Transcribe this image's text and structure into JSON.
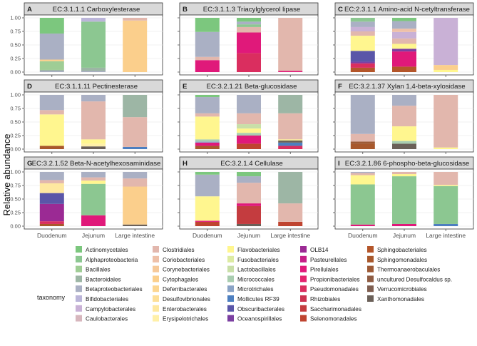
{
  "figure": {
    "y_axis_label": "Relative abundance"
  },
  "chart_data": {
    "type": "stacked-bar-facets",
    "ylabel": "Relative abundance",
    "categories": [
      "Duodenum",
      "Jejunum",
      "Large intestine"
    ],
    "ylim": [
      0,
      1
    ],
    "yticks": [
      "0.00",
      "0.25",
      "0.50",
      "0.75",
      "1.00"
    ],
    "legend": {
      "title": "taxonomy",
      "position": "bottom",
      "entries": [
        {
          "name": "Actinomycetales",
          "color": "#7cc77e"
        },
        {
          "name": "Alphaproteobacteria",
          "color": "#8cc791"
        },
        {
          "name": "Bacillales",
          "color": "#9fcd95"
        },
        {
          "name": "Bacteroidales",
          "color": "#9db6a5"
        },
        {
          "name": "Betaproteobacteriales",
          "color": "#aab0c4"
        },
        {
          "name": "Bifidobacteriales",
          "color": "#bbb5d9"
        },
        {
          "name": "Campylobacterales",
          "color": "#c9b1d6"
        },
        {
          "name": "Caulobacterales",
          "color": "#d7b6bd"
        },
        {
          "name": "Clostridiales",
          "color": "#e2b7ad"
        },
        {
          "name": "Coriobacteriales",
          "color": "#eec0a8"
        },
        {
          "name": "Corynebacteriales",
          "color": "#f6c999"
        },
        {
          "name": "Cytophagales",
          "color": "#fbcf8c"
        },
        {
          "name": "Deferribacterales",
          "color": "#fcd691"
        },
        {
          "name": "Desulfovibrionales",
          "color": "#fddf98"
        },
        {
          "name": "Enterobacterales",
          "color": "#fee8a0"
        },
        {
          "name": "Erysipelotrichales",
          "color": "#fff0a8"
        },
        {
          "name": "Flavobacteriales",
          "color": "#fff68f"
        },
        {
          "name": "Fusobacteriales",
          "color": "#ddeba2"
        },
        {
          "name": "Lactobacillales",
          "color": "#c9dfa8"
        },
        {
          "name": "Micrococcales",
          "color": "#a9cdb0"
        },
        {
          "name": "Microtrichales",
          "color": "#8aa3c6"
        },
        {
          "name": "Mollicutes RF39",
          "color": "#4d7fc0"
        },
        {
          "name": "Obscuribacterales",
          "color": "#5a56a8"
        },
        {
          "name": "Oceanospirillales",
          "color": "#7b3fa1"
        },
        {
          "name": "OLB14",
          "color": "#9b2a94"
        },
        {
          "name": "Pasteurellales",
          "color": "#c61f87"
        },
        {
          "name": "Pirellulales",
          "color": "#e0197a"
        },
        {
          "name": "Propionibacteriales",
          "color": "#e4246f"
        },
        {
          "name": "Pseudomonadales",
          "color": "#da2e5f"
        },
        {
          "name": "Rhizobiales",
          "color": "#cc3350"
        },
        {
          "name": "Saccharimonadales",
          "color": "#c43c3f"
        },
        {
          "name": "Selenomonadales",
          "color": "#bf4430"
        },
        {
          "name": "Sphingobacteriales",
          "color": "#b4562a"
        },
        {
          "name": "Sphingomonadales",
          "color": "#a8582c"
        },
        {
          "name": "Thermoanaerobaculales",
          "color": "#9d5a36"
        },
        {
          "name": "uncultured Desulfocaldus sp.",
          "color": "#8f5c43"
        },
        {
          "name": "Verrucomicrobiales",
          "color": "#7f5e50"
        },
        {
          "name": "Xanthomonadales",
          "color": "#6b6058"
        }
      ]
    },
    "panels": [
      {
        "label": "A",
        "title": "EC:3.1.1.1 Carboxylesterase",
        "bars": [
          [
            {
              "taxon": "Betaproteobacteriales",
              "value": 0.02
            },
            {
              "taxon": "Bacteroidales",
              "value": 0.02
            },
            {
              "taxon": "Bacillales",
              "value": 0.16
            },
            {
              "taxon": "Cytophagales",
              "value": 0.03
            },
            {
              "taxon": "Betaproteobacteriales",
              "value": 0.48
            },
            {
              "taxon": "Actinomycetales",
              "value": 0.29
            }
          ],
          [
            {
              "taxon": "Betaproteobacteriales",
              "value": 0.02
            },
            {
              "taxon": "Bacteroidales",
              "value": 0.06
            },
            {
              "taxon": "Alphaproteobacteria",
              "value": 0.85
            },
            {
              "taxon": "Bifidobacteriales",
              "value": 0.07
            }
          ],
          [
            {
              "taxon": "Cytophagales",
              "value": 0.95
            },
            {
              "taxon": "Clostridiales",
              "value": 0.05
            }
          ]
        ]
      },
      {
        "label": "B",
        "title": "EC:3.1.1.3 Triacylglycerol lipase",
        "bars": [
          [
            {
              "taxon": "Pirellulales",
              "value": 0.22
            },
            {
              "taxon": "Clostridiales",
              "value": 0.06
            },
            {
              "taxon": "Betaproteobacteriales",
              "value": 0.46
            },
            {
              "taxon": "Actinomycetales",
              "value": 0.26
            }
          ],
          [
            {
              "taxon": "Pseudomonadales",
              "value": 0.35
            },
            {
              "taxon": "Pirellulales",
              "value": 0.38
            },
            {
              "taxon": "Clostridiales",
              "value": 0.1
            },
            {
              "taxon": "Alphaproteobacteria",
              "value": 0.05
            },
            {
              "taxon": "Betaproteobacteriales",
              "value": 0.05
            },
            {
              "taxon": "Actinomycetales",
              "value": 0.07
            }
          ],
          [
            {
              "taxon": "Pirellulales",
              "value": 0.02
            },
            {
              "taxon": "Clostridiales",
              "value": 0.98
            }
          ]
        ]
      },
      {
        "label": "C",
        "title": "EC:2.3.1.1 Amino-acid N-cetyltransferase",
        "bars": [
          [
            {
              "taxon": "Sphingobacteriales",
              "value": 0.08
            },
            {
              "taxon": "Pseudomonadales",
              "value": 0.08
            },
            {
              "taxon": "Oceanospirillales",
              "value": 0.03
            },
            {
              "taxon": "Obscuribacterales",
              "value": 0.2
            },
            {
              "taxon": "Flavobacteriales",
              "value": 0.28
            },
            {
              "taxon": "Clostridiales",
              "value": 0.08
            },
            {
              "taxon": "Campylobacterales",
              "value": 0.08
            },
            {
              "taxon": "Betaproteobacteriales",
              "value": 0.1
            },
            {
              "taxon": "Alphaproteobacteria",
              "value": 0.07
            }
          ],
          [
            {
              "taxon": "Sphingobacteriales",
              "value": 0.1
            },
            {
              "taxon": "Pirellulales",
              "value": 0.28
            },
            {
              "taxon": "Oceanospirillales",
              "value": 0.05
            },
            {
              "taxon": "Flavobacteriales",
              "value": 0.09
            },
            {
              "taxon": "Clostridiales",
              "value": 0.1
            },
            {
              "taxon": "Campylobacterales",
              "value": 0.12
            },
            {
              "taxon": "Coriobacteriales",
              "value": 0.06
            },
            {
              "taxon": "Betaproteobacteriales",
              "value": 0.14
            },
            {
              "taxon": "Actinomycetales",
              "value": 0.06
            }
          ],
          [
            {
              "taxon": "Flavobacteriales",
              "value": 0.04
            },
            {
              "taxon": "Cytophagales",
              "value": 0.09
            },
            {
              "taxon": "Campylobacterales",
              "value": 0.87
            }
          ]
        ]
      },
      {
        "label": "D",
        "title": "EC:3.1.1.11 Pectinesterase",
        "bars": [
          [
            {
              "taxon": "Sphingomonadales",
              "value": 0.06
            },
            {
              "taxon": "Flavobacteriales",
              "value": 0.58
            },
            {
              "taxon": "Clostridiales",
              "value": 0.08
            },
            {
              "taxon": "Betaproteobacteriales",
              "value": 0.28
            }
          ],
          [
            {
              "taxon": "Xanthomonadales",
              "value": 0.05
            },
            {
              "taxon": "Erysipelotrichales",
              "value": 0.05
            },
            {
              "taxon": "Flavobacteriales",
              "value": 0.08
            },
            {
              "taxon": "Clostridiales",
              "value": 0.7
            },
            {
              "taxon": "Betaproteobacteriales",
              "value": 0.12
            }
          ],
          [
            {
              "taxon": "Mollicutes RF39",
              "value": 0.04
            },
            {
              "taxon": "Clostridiales",
              "value": 0.55
            },
            {
              "taxon": "Bacteroidales",
              "value": 0.41
            }
          ]
        ]
      },
      {
        "label": "E",
        "title": "EC:3.2.1.21 Beta-glucosidase",
        "bars": [
          [
            {
              "taxon": "Sphingomonadales",
              "value": 0.06
            },
            {
              "taxon": "Pirellulales",
              "value": 0.06
            },
            {
              "taxon": "Microtrichales",
              "value": 0.02
            },
            {
              "taxon": "Micrococcales",
              "value": 0.04
            },
            {
              "taxon": "Flavobacteriales",
              "value": 0.42
            },
            {
              "taxon": "Clostridiales",
              "value": 0.06
            },
            {
              "taxon": "Betaproteobacteriales",
              "value": 0.3
            },
            {
              "taxon": "Actinomycetales",
              "value": 0.04
            }
          ],
          [
            {
              "taxon": "Selenomonadales",
              "value": 0.1
            },
            {
              "taxon": "Pirellulales",
              "value": 0.15
            },
            {
              "taxon": "Micrococcales",
              "value": 0.05
            },
            {
              "taxon": "Flavobacteriales",
              "value": 0.08
            },
            {
              "taxon": "Lactobacillales",
              "value": 0.08
            },
            {
              "taxon": "Clostridiales",
              "value": 0.2
            },
            {
              "taxon": "Betaproteobacteriales",
              "value": 0.34
            }
          ],
          [
            {
              "taxon": "Pseudomonadales",
              "value": 0.06
            },
            {
              "taxon": "Mollicutes RF39",
              "value": 0.06
            },
            {
              "taxon": "Xanthomonadales",
              "value": 0.04
            },
            {
              "taxon": "Flavobacteriales",
              "value": 0.02
            },
            {
              "taxon": "Clostridiales",
              "value": 0.48
            },
            {
              "taxon": "Bacteroidales",
              "value": 0.34
            }
          ]
        ]
      },
      {
        "label": "F",
        "title": "EC:3.2.1.37 Xylan 1,4-beta-xylosidase",
        "bars": [
          [
            {
              "taxon": "Sphingomonadales",
              "value": 0.1
            },
            {
              "taxon": "Thermoanaerobaculales",
              "value": 0.04
            },
            {
              "taxon": "Clostridiales",
              "value": 0.14
            },
            {
              "taxon": "Betaproteobacteriales",
              "value": 0.72
            }
          ],
          [
            {
              "taxon": "Xanthomonadales",
              "value": 0.1
            },
            {
              "taxon": "Micrococcales",
              "value": 0.05
            },
            {
              "taxon": "Flavobacteriales",
              "value": 0.27
            },
            {
              "taxon": "Clostridiales",
              "value": 0.38
            },
            {
              "taxon": "Betaproteobacteriales",
              "value": 0.2
            }
          ],
          [
            {
              "taxon": "Flavobacteriales",
              "value": 0.03
            },
            {
              "taxon": "Clostridiales",
              "value": 0.97
            }
          ]
        ]
      },
      {
        "label": "G",
        "title": "EC:3.2.1.52 Beta-N-acetylhexosaminidase",
        "bars": [
          [
            {
              "taxon": "Sphingomonadales",
              "value": 0.04
            },
            {
              "taxon": "Pseudomonadales",
              "value": 0.05
            },
            {
              "taxon": "OLB14",
              "value": 0.32
            },
            {
              "taxon": "Obscuribacterales",
              "value": 0.2
            },
            {
              "taxon": "Enterobacterales",
              "value": 0.18
            },
            {
              "taxon": "Clostridiales",
              "value": 0.06
            },
            {
              "taxon": "Betaproteobacteriales",
              "value": 0.15
            }
          ],
          [
            {
              "taxon": "Pirellulales",
              "value": 0.2
            },
            {
              "taxon": "Alphaproteobacteria",
              "value": 0.58
            },
            {
              "taxon": "Flavobacteriales",
              "value": 0.06
            },
            {
              "taxon": "Clostridiales",
              "value": 0.06
            },
            {
              "taxon": "Betaproteobacteriales",
              "value": 0.1
            }
          ],
          [
            {
              "taxon": "Xanthomonadales",
              "value": 0.03
            },
            {
              "taxon": "Cytophagales",
              "value": 0.7
            },
            {
              "taxon": "Clostridiales",
              "value": 0.15
            },
            {
              "taxon": "Betaproteobacteriales",
              "value": 0.12
            }
          ]
        ]
      },
      {
        "label": "H",
        "title": "EC:3.2.1.4 Cellulase",
        "bars": [
          [
            {
              "taxon": "Selenomonadales",
              "value": 0.08
            },
            {
              "taxon": "Pirellulales",
              "value": 0.02
            },
            {
              "taxon": "Flavobacteriales",
              "value": 0.45
            },
            {
              "taxon": "Betaproteobacteriales",
              "value": 0.4
            },
            {
              "taxon": "Actinomycetales",
              "value": 0.05
            }
          ],
          [
            {
              "taxon": "Xanthomonadales",
              "value": 0.04
            },
            {
              "taxon": "Saccharimonadales",
              "value": 0.33
            },
            {
              "taxon": "Pirellulales",
              "value": 0.05
            },
            {
              "taxon": "Clostridiales",
              "value": 0.38
            },
            {
              "taxon": "Betaproteobacteriales",
              "value": 0.12
            },
            {
              "taxon": "Actinomycetales",
              "value": 0.08
            }
          ],
          [
            {
              "taxon": "Selenomonadales",
              "value": 0.08
            },
            {
              "taxon": "Clostridiales",
              "value": 0.34
            },
            {
              "taxon": "Bacteroidales",
              "value": 0.58
            }
          ]
        ]
      },
      {
        "label": "I",
        "title": "EC:3.2.1.86 6-phospho-beta-glucosidase",
        "bars": [
          [
            {
              "taxon": "Pirellulales",
              "value": 0.03
            },
            {
              "taxon": "Alphaproteobacteria",
              "value": 0.74
            },
            {
              "taxon": "Flavobacteriales",
              "value": 0.17
            },
            {
              "taxon": "Clostridiales",
              "value": 0.04
            },
            {
              "taxon": "Betaproteobacteriales",
              "value": 0.02
            }
          ],
          [
            {
              "taxon": "Pirellulales",
              "value": 0.04
            },
            {
              "taxon": "Alphaproteobacteria",
              "value": 0.88
            },
            {
              "taxon": "Flavobacteriales",
              "value": 0.04
            },
            {
              "taxon": "Clostridiales",
              "value": 0.04
            }
          ],
          [
            {
              "taxon": "Mollicutes RF39",
              "value": 0.04
            },
            {
              "taxon": "Alphaproteobacteria",
              "value": 0.7
            },
            {
              "taxon": "Flavobacteriales",
              "value": 0.02
            },
            {
              "taxon": "Clostridiales",
              "value": 0.24
            }
          ]
        ]
      }
    ]
  }
}
